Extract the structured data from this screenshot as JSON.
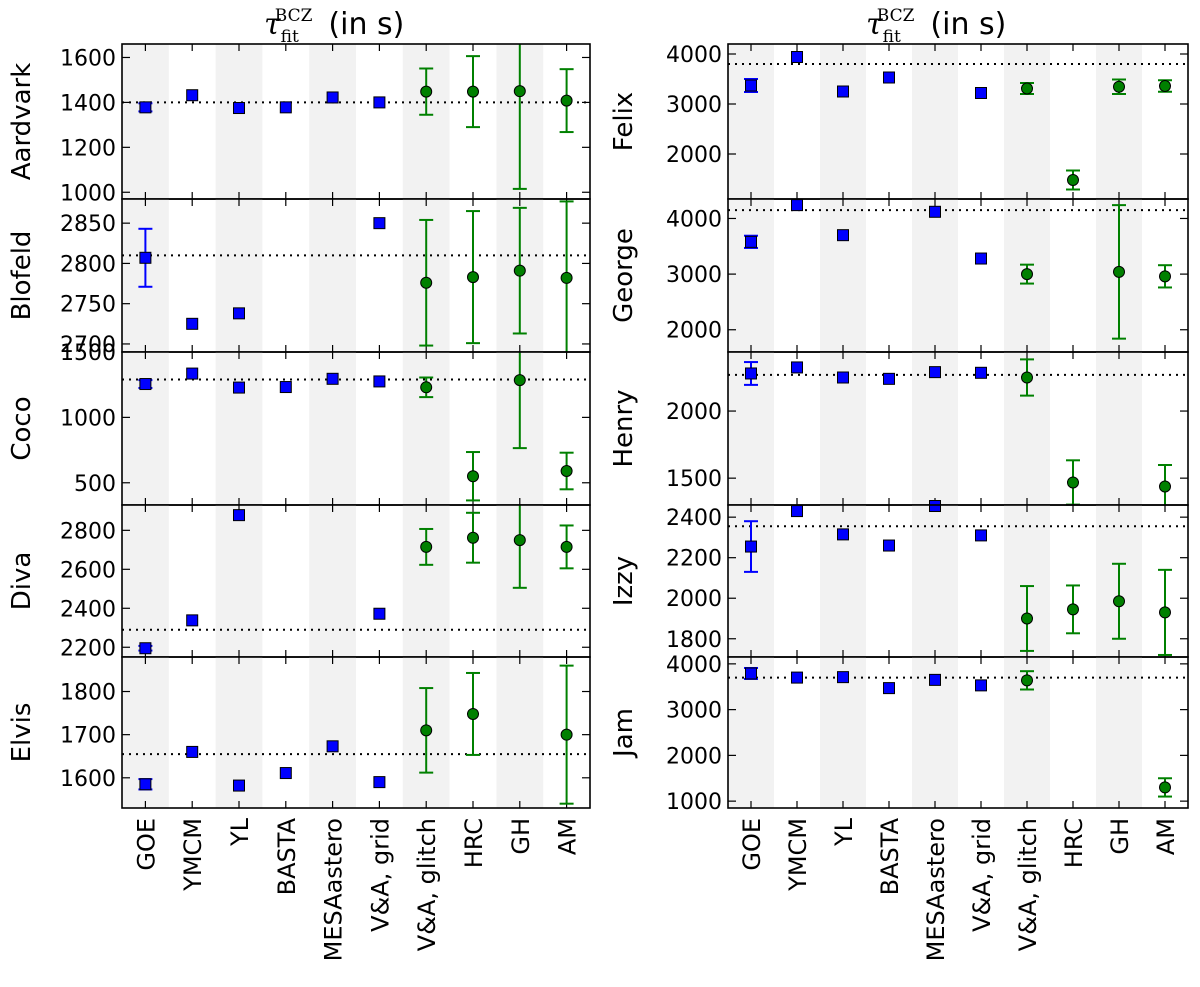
{
  "column_titles": [
    {
      "symbol": "τ",
      "subscript": "fit",
      "superscript": "BCZ",
      "suffix": "(in s)"
    },
    {
      "symbol": "τ",
      "subscript": "fit",
      "superscript": "BCZ",
      "suffix": "(in s)"
    }
  ],
  "categories": [
    "GOE",
    "YMCM",
    "YL",
    "BASTA",
    "MESAastero",
    "V&A, grid",
    "V&A, glitch",
    "HRC",
    "GH",
    "AM"
  ],
  "colors": {
    "blue_series": "#0000ff",
    "green_series": "#008000",
    "shade": "#f2f2f2",
    "reference_line": "#000000"
  },
  "chart_data": [
    {
      "type": "scatter",
      "panel": "Aardvark",
      "column": 0,
      "row": 0,
      "ylabel": "Aardvark",
      "ylim": [
        970,
        1660
      ],
      "yticks": [
        1000,
        1200,
        1400,
        1600
      ],
      "reference": 1400,
      "points": [
        {
          "cat": "GOE",
          "y": 1378,
          "err": 18,
          "marker": "square",
          "color": "blue"
        },
        {
          "cat": "YMCM",
          "y": 1432,
          "marker": "square",
          "color": "blue"
        },
        {
          "cat": "YL",
          "y": 1375,
          "marker": "square",
          "color": "blue"
        },
        {
          "cat": "BASTA",
          "y": 1378,
          "marker": "square",
          "color": "blue"
        },
        {
          "cat": "MESAastero",
          "y": 1422,
          "marker": "square",
          "color": "blue"
        },
        {
          "cat": "V&A, grid",
          "y": 1400,
          "marker": "square",
          "color": "blue"
        },
        {
          "cat": "V&A, glitch",
          "y": 1448,
          "err": 103,
          "marker": "circle",
          "color": "green"
        },
        {
          "cat": "HRC",
          "y": 1448,
          "err": 158,
          "marker": "circle",
          "color": "green"
        },
        {
          "cat": "GH",
          "y": 1450,
          "err": 435,
          "marker": "circle",
          "color": "green"
        },
        {
          "cat": "AM",
          "y": 1408,
          "err": 140,
          "marker": "circle",
          "color": "green"
        }
      ]
    },
    {
      "type": "scatter",
      "panel": "Blofeld",
      "column": 0,
      "row": 1,
      "ylabel": "Blofeld",
      "ylim": [
        2690,
        2880
      ],
      "yticks": [
        2700,
        2750,
        2800,
        2850
      ],
      "reference": 2810,
      "points": [
        {
          "cat": "GOE",
          "y": 2807,
          "err": 36,
          "marker": "square",
          "color": "blue"
        },
        {
          "cat": "YMCM",
          "y": 2725,
          "marker": "square",
          "color": "blue"
        },
        {
          "cat": "YL",
          "y": 2738,
          "marker": "square",
          "color": "blue"
        },
        {
          "cat": "V&A, grid",
          "y": 2850,
          "marker": "square",
          "color": "blue"
        },
        {
          "cat": "V&A, glitch",
          "y": 2776,
          "err": 78,
          "marker": "circle",
          "color": "green"
        },
        {
          "cat": "HRC",
          "y": 2783,
          "err": 82,
          "marker": "circle",
          "color": "green"
        },
        {
          "cat": "GH",
          "y": 2791,
          "err": 78,
          "marker": "circle",
          "color": "green"
        },
        {
          "cat": "AM",
          "y": 2782,
          "err": 95,
          "marker": "circle",
          "color": "green"
        }
      ]
    },
    {
      "type": "scatter",
      "panel": "Coco",
      "column": 0,
      "row": 2,
      "ylabel": "Coco",
      "ylim": [
        330,
        1500
      ],
      "yticks": [
        500,
        1000,
        1500
      ],
      "reference": 1290,
      "points": [
        {
          "cat": "GOE",
          "y": 1255,
          "err": 30,
          "marker": "square",
          "color": "blue"
        },
        {
          "cat": "YMCM",
          "y": 1335,
          "marker": "square",
          "color": "blue"
        },
        {
          "cat": "YL",
          "y": 1228,
          "marker": "square",
          "color": "blue"
        },
        {
          "cat": "BASTA",
          "y": 1232,
          "marker": "square",
          "color": "blue"
        },
        {
          "cat": "MESAastero",
          "y": 1295,
          "marker": "square",
          "color": "blue"
        },
        {
          "cat": "V&A, grid",
          "y": 1275,
          "marker": "square",
          "color": "blue"
        },
        {
          "cat": "V&A, glitch",
          "y": 1230,
          "err": 75,
          "marker": "circle",
          "color": "green"
        },
        {
          "cat": "HRC",
          "y": 550,
          "err": 185,
          "marker": "circle",
          "color": "green"
        },
        {
          "cat": "GH",
          "y": 1285,
          "err": 520,
          "marker": "circle",
          "color": "green"
        },
        {
          "cat": "AM",
          "y": 590,
          "err": 140,
          "marker": "circle",
          "color": "green"
        }
      ]
    },
    {
      "type": "scatter",
      "panel": "Diva",
      "column": 0,
      "row": 3,
      "ylabel": "Diva",
      "ylim": [
        2150,
        2930
      ],
      "yticks": [
        2200,
        2400,
        2600,
        2800
      ],
      "reference": 2290,
      "points": [
        {
          "cat": "GOE",
          "y": 2195,
          "err": 12,
          "marker": "square",
          "color": "blue"
        },
        {
          "cat": "YMCM",
          "y": 2338,
          "marker": "square",
          "color": "blue"
        },
        {
          "cat": "YL",
          "y": 2878,
          "marker": "square",
          "color": "blue"
        },
        {
          "cat": "V&A, grid",
          "y": 2372,
          "marker": "square",
          "color": "blue"
        },
        {
          "cat": "V&A, glitch",
          "y": 2715,
          "err": 92,
          "marker": "circle",
          "color": "green"
        },
        {
          "cat": "HRC",
          "y": 2762,
          "err": 128,
          "marker": "circle",
          "color": "green"
        },
        {
          "cat": "GH",
          "y": 2750,
          "err": 245,
          "marker": "circle",
          "color": "green"
        },
        {
          "cat": "AM",
          "y": 2715,
          "err": 110,
          "marker": "circle",
          "color": "green"
        }
      ]
    },
    {
      "type": "scatter",
      "panel": "Elvis",
      "column": 0,
      "row": 4,
      "ylabel": "Elvis",
      "ylim": [
        1530,
        1880
      ],
      "yticks": [
        1600,
        1700,
        1800
      ],
      "reference": 1655,
      "points": [
        {
          "cat": "GOE",
          "y": 1585,
          "err": 12,
          "marker": "square",
          "color": "blue"
        },
        {
          "cat": "YMCM",
          "y": 1660,
          "marker": "square",
          "color": "blue"
        },
        {
          "cat": "YL",
          "y": 1582,
          "marker": "square",
          "color": "blue"
        },
        {
          "cat": "BASTA",
          "y": 1611,
          "marker": "square",
          "color": "blue"
        },
        {
          "cat": "MESAastero",
          "y": 1673,
          "marker": "square",
          "color": "blue"
        },
        {
          "cat": "V&A, grid",
          "y": 1590,
          "marker": "square",
          "color": "blue"
        },
        {
          "cat": "V&A, glitch",
          "y": 1710,
          "err": 98,
          "marker": "circle",
          "color": "green"
        },
        {
          "cat": "HRC",
          "y": 1748,
          "err": 95,
          "marker": "circle",
          "color": "green"
        },
        {
          "cat": "AM",
          "y": 1700,
          "err": 160,
          "marker": "circle",
          "color": "green"
        }
      ]
    },
    {
      "type": "scatter",
      "panel": "Felix",
      "column": 1,
      "row": 0,
      "ylabel": "Felix",
      "ylim": [
        1100,
        4200
      ],
      "yticks": [
        2000,
        3000,
        4000
      ],
      "reference": 3800,
      "points": [
        {
          "cat": "GOE",
          "y": 3370,
          "err": 130,
          "marker": "square",
          "color": "blue"
        },
        {
          "cat": "YMCM",
          "y": 3940,
          "marker": "square",
          "color": "blue"
        },
        {
          "cat": "YL",
          "y": 3250,
          "marker": "square",
          "color": "blue"
        },
        {
          "cat": "BASTA",
          "y": 3530,
          "marker": "square",
          "color": "blue"
        },
        {
          "cat": "V&A, grid",
          "y": 3220,
          "marker": "square",
          "color": "blue"
        },
        {
          "cat": "V&A, glitch",
          "y": 3310,
          "err": 110,
          "marker": "circle",
          "color": "green"
        },
        {
          "cat": "HRC",
          "y": 1480,
          "err": 190,
          "marker": "circle",
          "color": "green"
        },
        {
          "cat": "GH",
          "y": 3345,
          "err": 145,
          "marker": "circle",
          "color": "green"
        },
        {
          "cat": "AM",
          "y": 3360,
          "err": 115,
          "marker": "circle",
          "color": "green"
        }
      ]
    },
    {
      "type": "scatter",
      "panel": "George",
      "column": 1,
      "row": 1,
      "ylabel": "George",
      "ylim": [
        1600,
        4350
      ],
      "yticks": [
        2000,
        3000,
        4000
      ],
      "reference": 4150,
      "points": [
        {
          "cat": "GOE",
          "y": 3580,
          "err": 110,
          "marker": "square",
          "color": "blue"
        },
        {
          "cat": "YMCM",
          "y": 4240,
          "marker": "square",
          "color": "blue"
        },
        {
          "cat": "YL",
          "y": 3700,
          "marker": "square",
          "color": "blue"
        },
        {
          "cat": "MESAastero",
          "y": 4120,
          "marker": "square",
          "color": "blue"
        },
        {
          "cat": "V&A, grid",
          "y": 3280,
          "marker": "square",
          "color": "blue"
        },
        {
          "cat": "V&A, glitch",
          "y": 3000,
          "err": 170,
          "marker": "circle",
          "color": "green"
        },
        {
          "cat": "GH",
          "y": 3040,
          "err": 1200,
          "marker": "circle",
          "color": "green"
        },
        {
          "cat": "AM",
          "y": 2960,
          "err": 200,
          "marker": "circle",
          "color": "green"
        }
      ]
    },
    {
      "type": "scatter",
      "panel": "Henry",
      "column": 1,
      "row": 2,
      "ylabel": "Henry",
      "ylim": [
        1300,
        2440
      ],
      "yticks": [
        1500,
        2000
      ],
      "reference": 2270,
      "points": [
        {
          "cat": "GOE",
          "y": 2280,
          "err": 85,
          "marker": "square",
          "color": "blue"
        },
        {
          "cat": "YMCM",
          "y": 2325,
          "marker": "square",
          "color": "blue"
        },
        {
          "cat": "YL",
          "y": 2250,
          "marker": "square",
          "color": "blue"
        },
        {
          "cat": "BASTA",
          "y": 2240,
          "marker": "square",
          "color": "blue"
        },
        {
          "cat": "MESAastero",
          "y": 2290,
          "marker": "square",
          "color": "blue"
        },
        {
          "cat": "V&A, grid",
          "y": 2285,
          "marker": "square",
          "color": "blue"
        },
        {
          "cat": "V&A, glitch",
          "y": 2250,
          "err": 135,
          "marker": "circle",
          "color": "green"
        },
        {
          "cat": "HRC",
          "y": 1468,
          "err": 165,
          "marker": "circle",
          "color": "green"
        },
        {
          "cat": "AM",
          "y": 1438,
          "err": 160,
          "marker": "circle",
          "color": "green"
        }
      ]
    },
    {
      "type": "scatter",
      "panel": "Izzy",
      "column": 1,
      "row": 3,
      "ylabel": "Izzy",
      "ylim": [
        1710,
        2460
      ],
      "yticks": [
        1800,
        2000,
        2200,
        2400
      ],
      "reference": 2355,
      "points": [
        {
          "cat": "GOE",
          "y": 2255,
          "err": 125,
          "marker": "square",
          "color": "blue"
        },
        {
          "cat": "YMCM",
          "y": 2430,
          "marker": "square",
          "color": "blue"
        },
        {
          "cat": "YL",
          "y": 2315,
          "marker": "square",
          "color": "blue"
        },
        {
          "cat": "BASTA",
          "y": 2260,
          "marker": "square",
          "color": "blue"
        },
        {
          "cat": "MESAastero",
          "y": 2455,
          "marker": "square",
          "color": "blue"
        },
        {
          "cat": "V&A, grid",
          "y": 2310,
          "marker": "square",
          "color": "blue"
        },
        {
          "cat": "V&A, glitch",
          "y": 1900,
          "err": 160,
          "marker": "circle",
          "color": "green"
        },
        {
          "cat": "HRC",
          "y": 1945,
          "err": 118,
          "marker": "circle",
          "color": "green"
        },
        {
          "cat": "GH",
          "y": 1985,
          "err": 185,
          "marker": "circle",
          "color": "green"
        },
        {
          "cat": "AM",
          "y": 1930,
          "err": 210,
          "marker": "circle",
          "color": "green"
        }
      ]
    },
    {
      "type": "scatter",
      "panel": "Jam",
      "column": 1,
      "row": 4,
      "ylabel": "Jam",
      "ylim": [
        850,
        4150
      ],
      "yticks": [
        1000,
        2000,
        3000,
        4000
      ],
      "reference": 3700,
      "points": [
        {
          "cat": "GOE",
          "y": 3790,
          "err": 120,
          "marker": "square",
          "color": "blue"
        },
        {
          "cat": "YMCM",
          "y": 3700,
          "marker": "square",
          "color": "blue"
        },
        {
          "cat": "YL",
          "y": 3710,
          "marker": "square",
          "color": "blue"
        },
        {
          "cat": "BASTA",
          "y": 3470,
          "marker": "square",
          "color": "blue"
        },
        {
          "cat": "MESAastero",
          "y": 3650,
          "marker": "square",
          "color": "blue"
        },
        {
          "cat": "V&A, grid",
          "y": 3530,
          "marker": "square",
          "color": "blue"
        },
        {
          "cat": "V&A, glitch",
          "y": 3640,
          "err": 200,
          "marker": "circle",
          "color": "green"
        },
        {
          "cat": "AM",
          "y": 1300,
          "err": 200,
          "marker": "circle",
          "color": "green"
        }
      ]
    }
  ]
}
